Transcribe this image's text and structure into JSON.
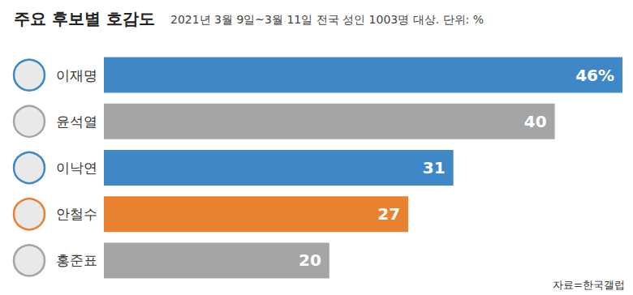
{
  "chart_data": {
    "type": "bar",
    "orientation": "horizontal",
    "title": "주요 후보별 호감도",
    "subtitle": "2021년 3월 9일~3월 11일 전국 성인 1003명 대상. 단위: %",
    "categories": [
      "이재명",
      "윤석열",
      "이낙연",
      "안철수",
      "홍준표"
    ],
    "values": [
      46,
      40,
      31,
      27,
      20
    ],
    "value_labels": [
      "46%",
      "40",
      "31",
      "27",
      "20"
    ],
    "colors": [
      "#3e88c7",
      "#a5a5a5",
      "#3e88c7",
      "#e98131",
      "#a5a5a5"
    ],
    "xlim": [
      0,
      46
    ],
    "data_labels": true,
    "tick_labels": "y",
    "grid": false,
    "source": "자료=한국갤럽"
  }
}
